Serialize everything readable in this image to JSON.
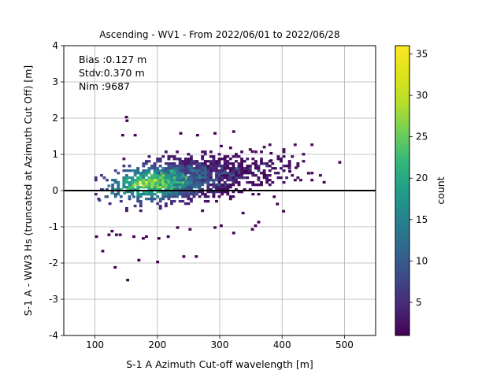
{
  "chart_data": {
    "type": "heatmap",
    "title": "Ascending - WV1 - From 2022/06/01 to 2022/06/28",
    "xlabel": "S-1 A Azimuth Cut-off wavelength [m]",
    "ylabel": "S-1 A - WW3 Hs (truncated at Azimuth Cut Off) [m]",
    "xlim": [
      50,
      550
    ],
    "ylim": [
      -4,
      4
    ],
    "xticks": [
      100,
      200,
      300,
      400,
      500
    ],
    "yticks": [
      -4,
      -3,
      -2,
      -1,
      0,
      1,
      2,
      3,
      4
    ],
    "grid": true,
    "zero_line": 0,
    "stats": [
      "Bias :0.127 m",
      "Stdv:0.370 m",
      "Nim :9687"
    ],
    "colorbar": {
      "label": "count",
      "range": [
        1,
        36
      ],
      "ticks": [
        5,
        10,
        15,
        20,
        25,
        30,
        35
      ],
      "colormap": "viridis"
    },
    "density_core": {
      "x": 180,
      "y": 0.15,
      "peak_count": 36
    },
    "bins": [
      [
        170,
        0.2,
        36
      ],
      [
        180,
        0.2,
        32
      ],
      [
        175,
        0.1,
        30
      ],
      [
        160,
        0.1,
        28
      ],
      [
        190,
        0.2,
        27
      ],
      [
        185,
        0.25,
        26
      ],
      [
        150,
        0.0,
        24
      ],
      [
        165,
        0.15,
        25
      ],
      [
        200,
        0.2,
        23
      ],
      [
        195,
        0.15,
        22
      ],
      [
        140,
        0.0,
        22
      ],
      [
        155,
        0.05,
        23
      ],
      [
        130,
        0.0,
        20
      ],
      [
        210,
        0.25,
        20
      ],
      [
        220,
        0.25,
        18
      ],
      [
        145,
        -0.1,
        18
      ],
      [
        125,
        -0.1,
        16
      ],
      [
        175,
        0.35,
        16
      ],
      [
        230,
        0.3,
        14
      ],
      [
        120,
        0.1,
        15
      ],
      [
        135,
        0.2,
        14
      ],
      [
        240,
        0.3,
        12
      ],
      [
        115,
        -0.2,
        12
      ],
      [
        160,
        -0.2,
        12
      ],
      [
        250,
        0.35,
        10
      ],
      [
        110,
        0.0,
        10
      ],
      [
        260,
        0.4,
        8
      ],
      [
        200,
        0.45,
        9
      ],
      [
        105,
        -0.3,
        8
      ],
      [
        270,
        0.4,
        7
      ]
    ],
    "outliers": [
      [
        148,
        2.0
      ],
      [
        149,
        1.9
      ],
      [
        142,
        1.5
      ],
      [
        162,
        1.5
      ],
      [
        235,
        1.55
      ],
      [
        262,
        1.5
      ],
      [
        290,
        1.55
      ],
      [
        320,
        1.6
      ],
      [
        300,
        1.2
      ],
      [
        315,
        1.15
      ],
      [
        350,
        1.05
      ],
      [
        380,
        1.0
      ],
      [
        420,
        0.6
      ],
      [
        440,
        0.45
      ],
      [
        490,
        0.75
      ],
      [
        465,
        0.2
      ],
      [
        100,
        -1.3
      ],
      [
        110,
        -1.7
      ],
      [
        120,
        -1.25
      ],
      [
        132,
        -1.25
      ],
      [
        138,
        -1.25
      ],
      [
        160,
        -1.3
      ],
      [
        175,
        -1.35
      ],
      [
        180,
        -1.3
      ],
      [
        125,
        -1.15
      ],
      [
        130,
        -2.15
      ],
      [
        150,
        -2.5
      ],
      [
        168,
        -1.95
      ],
      [
        198,
        -2.0
      ],
      [
        240,
        -1.85
      ],
      [
        260,
        -1.85
      ],
      [
        350,
        -1.1
      ],
      [
        360,
        -0.9
      ],
      [
        355,
        -1.0
      ],
      [
        390,
        -0.4
      ],
      [
        400,
        -0.6
      ],
      [
        230,
        -1.05
      ],
      [
        200,
        -1.35
      ],
      [
        215,
        -1.3
      ],
      [
        250,
        -1.1
      ],
      [
        290,
        -1.05
      ],
      [
        320,
        -1.2
      ],
      [
        300,
        -1.0
      ],
      [
        385,
        -0.2
      ],
      [
        370,
        0.4
      ],
      [
        380,
        0.8
      ],
      [
        410,
        0.5
      ],
      [
        340,
        0.5
      ],
      [
        335,
        -0.65
      ]
    ]
  }
}
